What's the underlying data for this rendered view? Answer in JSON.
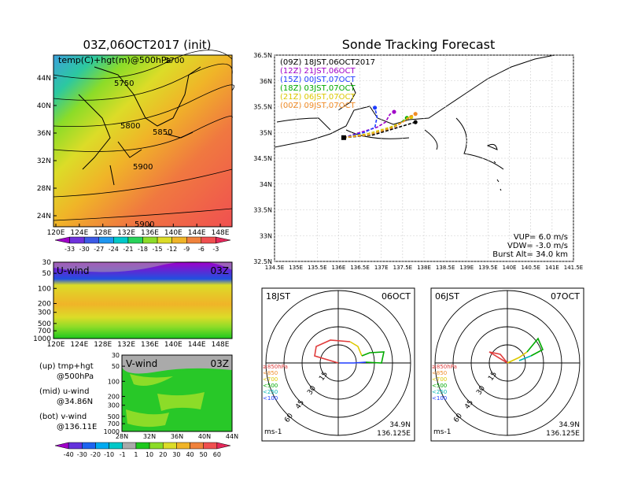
{
  "titles": {
    "left": "03Z,06OCT2017 (init)",
    "right": "Sonde Tracking Forecast"
  },
  "temp_map": {
    "label": "temp(C)+hgt(m)@500hPa",
    "x_ticks": [
      "120E",
      "124E",
      "128E",
      "132E",
      "136E",
      "140E",
      "144E",
      "148E"
    ],
    "y_ticks": [
      "44N",
      "40N",
      "36N",
      "32N",
      "28N",
      "24N"
    ],
    "contour_labels": [
      "5750",
      "5800",
      "5850",
      "5900",
      "5900",
      "5700"
    ],
    "colorbar_ticks": [
      "-33",
      "-30",
      "-27",
      "-24",
      "-21",
      "-18",
      "-15",
      "-12",
      "-9",
      "-6",
      "-3"
    ],
    "colorbar_colors": [
      "#a000c8",
      "#6e32dc",
      "#3c5ae6",
      "#1e96f0",
      "#00c8c8",
      "#28d25a",
      "#8cdc28",
      "#dcdc28",
      "#f0b428",
      "#f0823c",
      "#f05050",
      "#e6285a"
    ]
  },
  "u_wind": {
    "label": "U-wind",
    "time": "03Z",
    "y_ticks": [
      "30",
      "50",
      "100",
      "200",
      "300",
      "500",
      "700",
      "1000"
    ],
    "x_ticks": [
      "120E",
      "124E",
      "128E",
      "132E",
      "136E",
      "140E",
      "144E",
      "148E"
    ]
  },
  "v_wind": {
    "label": "V-wind",
    "time": "03Z",
    "y_ticks": [
      "30",
      "50",
      "100",
      "200",
      "300",
      "500",
      "700",
      "1000"
    ],
    "x_ticks": [
      "28N",
      "32N",
      "36N",
      "40N",
      "44N"
    ]
  },
  "notes": {
    "up_a": "(up) tmp+hgt",
    "up_b": "@500hPa",
    "mid_a": "(mid) u-wind",
    "mid_b": "@34.86N",
    "bot_a": "(bot) v-wind",
    "bot_b": "@136.11E"
  },
  "wind_colorbar": {
    "ticks": [
      "-40",
      "-30",
      "-20",
      "-10",
      "-1",
      "1",
      "10",
      "20",
      "30",
      "40",
      "50",
      "60"
    ],
    "colors": [
      "#a000c8",
      "#6432dc",
      "#1e64f0",
      "#00aaf0",
      "#00c8c8",
      "#aaaaaa",
      "#1ec81e",
      "#8cdc28",
      "#dcdc28",
      "#f0b428",
      "#f0823c",
      "#f05050",
      "#e6285a"
    ]
  },
  "track_map": {
    "x_ticks": [
      "134.5E",
      "135E",
      "135.5E",
      "136E",
      "136.5E",
      "137E",
      "137.5E",
      "138E",
      "138.5E",
      "139E",
      "139.5E",
      "140E",
      "140.5E",
      "141E",
      "141.5E"
    ],
    "y_ticks": [
      "36.5N",
      "36N",
      "35.5N",
      "35N",
      "34.5N",
      "34N",
      "33.5N",
      "33N",
      "32.5N"
    ],
    "legend": [
      {
        "label": "(09Z)  18JST,06OCT2017",
        "color": "#000000"
      },
      {
        "label": "(12Z)  21JST,06OCT",
        "color": "#a000c8"
      },
      {
        "label": "(15Z)  00JST,07OCT",
        "color": "#1e3cff"
      },
      {
        "label": "(18Z)  03JST,07OCT",
        "color": "#00aa00"
      },
      {
        "label": "(21Z)  06JST,07OCT",
        "color": "#dcc800"
      },
      {
        "label": "(00Z)  09JST,07OCT",
        "color": "#f08c28"
      }
    ],
    "info": [
      "VUP=  6.0  m/s",
      "VDW=  -3.0  m/s",
      "Burst Alt=  34.0  km"
    ]
  },
  "polar_left": {
    "time": "18JST",
    "date": "06OCT",
    "ring_labels": [
      "15",
      "30",
      "45",
      "60"
    ],
    "unit": "ms-1",
    "lat": "34.9N",
    "lon": "136.125E",
    "levels": [
      {
        "label": "≥850hPa",
        "color": "#e03c3c"
      },
      {
        "label": "<850",
        "color": "#f08c28"
      },
      {
        "label": "<700",
        "color": "#dcc800"
      },
      {
        "label": "<500",
        "color": "#00aa00"
      },
      {
        "label": "<250",
        "color": "#00b4b4"
      },
      {
        "label": "<100",
        "color": "#1e3cff"
      }
    ]
  },
  "polar_right": {
    "time": "06JST",
    "date": "07OCT",
    "ring_labels": [
      "15",
      "30",
      "45",
      "60"
    ],
    "unit": "ms-1",
    "lat": "34.9N",
    "lon": "136.125E",
    "levels": [
      {
        "label": "≥850hPa",
        "color": "#e03c3c"
      },
      {
        "label": "<850",
        "color": "#f08c28"
      },
      {
        "label": "<700",
        "color": "#dcc800"
      },
      {
        "label": "<500",
        "color": "#00aa00"
      },
      {
        "label": "<250",
        "color": "#00b4b4"
      },
      {
        "label": "<100",
        "color": "#1e3cff"
      }
    ]
  },
  "chart_data": [
    {
      "type": "line",
      "title": "Sonde Tracking Forecast",
      "xlabel": "",
      "ylabel": "",
      "xlim": [
        134.5,
        141.5
      ],
      "ylim": [
        32.5,
        36.5
      ],
      "series": [
        {
          "name": "(09Z)  18JST,06OCT2017",
          "x": [
            136.12,
            136.4,
            136.8,
            137.2,
            137.6,
            137.8
          ],
          "y": [
            34.9,
            34.92,
            34.95,
            35.05,
            35.15,
            35.2
          ]
        },
        {
          "name": "(12Z)  21JST,06OCT",
          "x": [
            136.12,
            136.5,
            136.9,
            137.1,
            137.2,
            137.3
          ],
          "y": [
            34.9,
            35.0,
            35.1,
            35.2,
            35.35,
            35.4
          ]
        },
        {
          "name": "(15Z)  00JST,07OCT",
          "x": [
            136.12,
            136.6,
            136.85,
            136.9,
            136.85
          ],
          "y": [
            34.9,
            35.0,
            35.1,
            35.3,
            35.48
          ]
        },
        {
          "name": "(18Z)  03JST,07OCT",
          "x": [
            136.12,
            136.7,
            137.1,
            137.4,
            137.5,
            137.6
          ],
          "y": [
            34.9,
            34.95,
            35.05,
            35.15,
            35.22,
            35.28
          ]
        },
        {
          "name": "(21Z)  06JST,07OCT",
          "x": [
            136.12,
            136.7,
            137.2,
            137.5,
            137.6,
            137.7
          ],
          "y": [
            34.9,
            34.98,
            35.1,
            35.2,
            35.28,
            35.3
          ]
        },
        {
          "name": "(00Z)  09JST,07OCT",
          "x": [
            136.12,
            136.7,
            137.3,
            137.6,
            137.7,
            137.8
          ],
          "y": [
            34.9,
            34.95,
            35.1,
            35.25,
            35.32,
            35.36
          ]
        }
      ]
    }
  ]
}
